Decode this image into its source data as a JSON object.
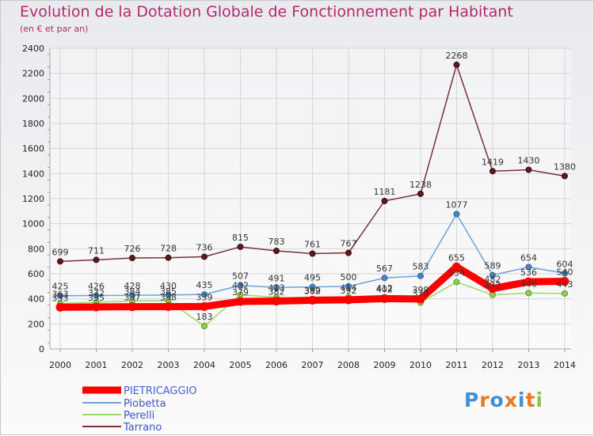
{
  "title": "Evolution de la Dotation Globale de Fonctionnement par Habitant",
  "subtitle": "(en € et par an)",
  "brand": {
    "text": "Proxiti",
    "colors": [
      "#3f8fd2",
      "#e87722",
      "#3f8fd2",
      "#e87722",
      "#3f8fd2",
      "#e87722",
      "#8bc34a"
    ]
  },
  "chart_data": {
    "type": "line",
    "title": "Evolution de la Dotation Globale de Fonctionnement par Habitant",
    "ylabel": "(en € et par an)",
    "xlabel": "",
    "x": [
      "2000",
      "2001",
      "2002",
      "2003",
      "2004",
      "2005",
      "2006",
      "2007",
      "2008",
      "2009",
      "2010",
      "2011",
      "2012",
      "2013",
      "2014"
    ],
    "ylim": [
      0,
      2400
    ],
    "yticks": [
      0,
      200,
      400,
      600,
      800,
      1000,
      1200,
      1400,
      1600,
      1800,
      2000,
      2200,
      2400
    ],
    "grid": true,
    "legend_position": "bottom-left",
    "series": [
      {
        "name": "PIETRICAGGIO",
        "color": "#ff0000",
        "values": [
          333,
          335,
          337,
          338,
          339,
          379,
          382,
          389,
          392,
          402,
          399,
          655,
          482,
          536,
          540
        ],
        "labels": [
          "333",
          "335",
          "337",
          "338",
          "339",
          "379",
          "382",
          "389",
          "392",
          "402",
          "399",
          "655",
          "482",
          "536",
          "540"
        ]
      },
      {
        "name": "Piobetta",
        "color": "#5b9bd5",
        "values": [
          425,
          426,
          428,
          430,
          435,
          507,
          491,
          495,
          500,
          567,
          583,
          1077,
          589,
          654,
          604
        ],
        "labels": [
          "425",
          "426",
          "428",
          "430",
          "435",
          "507",
          "491",
          "495",
          "500",
          "567",
          "583",
          "1077",
          "589",
          "654",
          "604"
        ]
      },
      {
        "name": "Perelli",
        "color": "#92d050",
        "values": [
          363,
          372,
          384,
          385,
          183,
          432,
          413,
          392,
          414,
          412,
          370,
          534,
          432,
          446,
          443
        ],
        "labels": [
          "363",
          "372",
          "384",
          "385",
          "183",
          "432",
          "413",
          "392",
          "414",
          "412",
          "370",
          "534",
          "432",
          "446",
          "443"
        ]
      },
      {
        "name": "Tarrano",
        "color": "#6b1f24",
        "values": [
          699,
          711,
          726,
          728,
          736,
          815,
          783,
          761,
          767,
          1181,
          1238,
          2268,
          1419,
          1430,
          1380
        ],
        "labels": [
          "699",
          "711",
          "726",
          "728",
          "736",
          "815",
          "783",
          "761",
          "767",
          "1181",
          "1238",
          "2268",
          "1419",
          "1430",
          "1380"
        ]
      }
    ]
  }
}
